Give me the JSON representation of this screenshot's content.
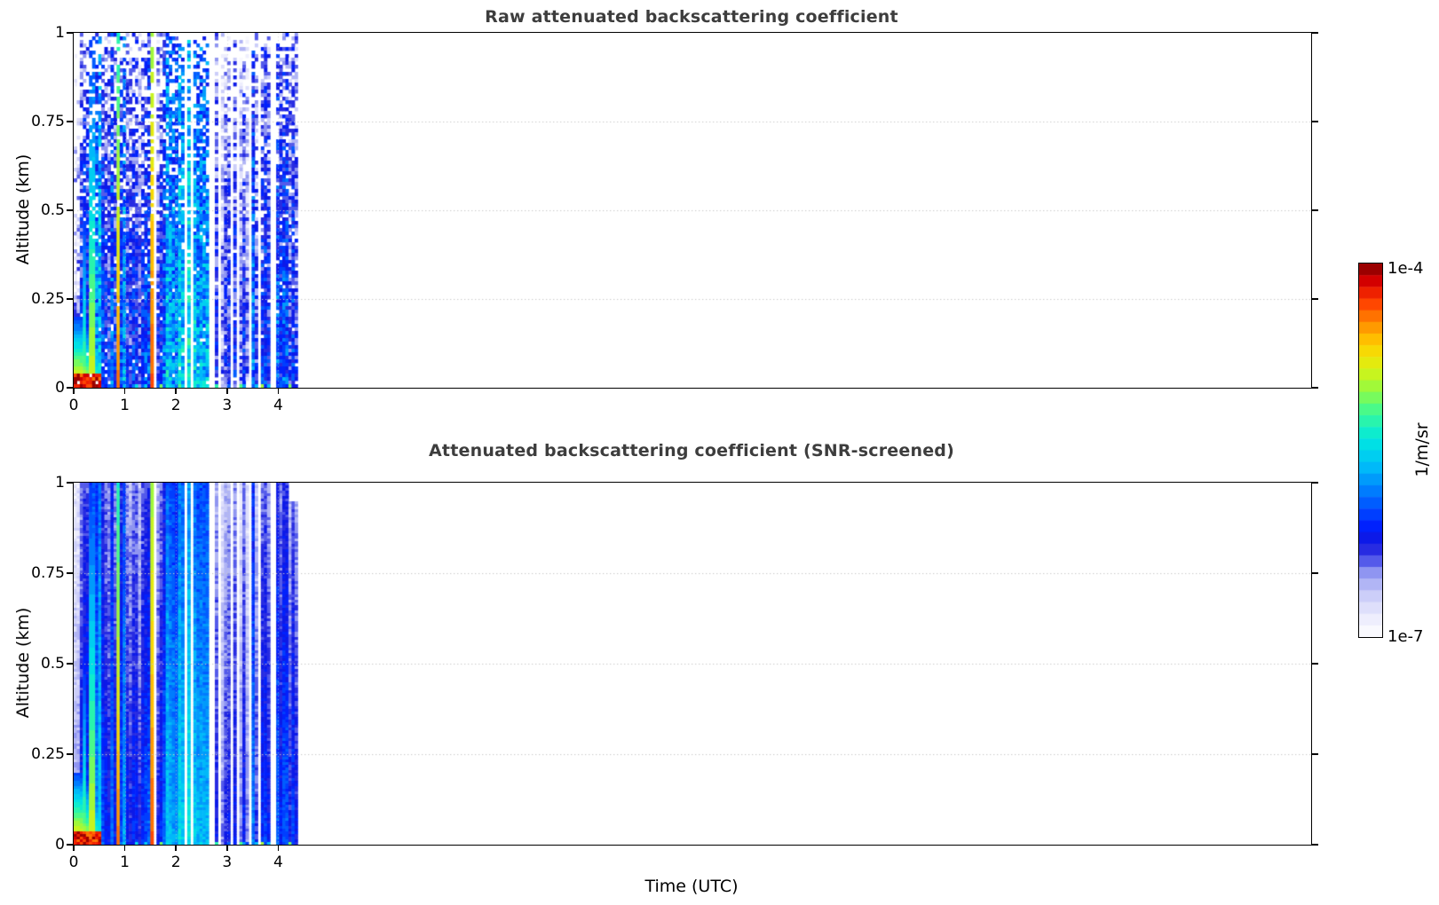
{
  "chart_data": {
    "type": "heatmap",
    "panels": [
      {
        "id": "raw",
        "title": "Raw attenuated backscattering coefficient",
        "description": "Lidar attenuated backscatter vs time and altitude; unscreened, speckled noise and dropouts increase with altitude"
      },
      {
        "id": "screened",
        "title": "Attenuated backscattering coefficient (SNR-screened)",
        "description": "Same field after SNR screening; solid smooth profile columns, small notch at top of last profiles"
      }
    ],
    "x_axis": {
      "label": "Time (UTC)",
      "tick_labels": [
        "0",
        "1",
        "2",
        "3",
        "4"
      ],
      "tick_values": [
        0,
        1,
        2,
        3,
        4
      ],
      "lim": [
        0,
        24.2
      ],
      "data_extent": [
        0,
        4.33
      ],
      "grid": "dotted"
    },
    "y_axis": {
      "label": "Altitude (km)",
      "tick_labels": [
        "0",
        "0.25",
        "0.5",
        "0.75",
        "1"
      ],
      "tick_values": [
        0,
        0.25,
        0.5,
        0.75,
        1
      ],
      "lim": [
        0,
        1
      ],
      "grid": "dotted"
    },
    "colorbar": {
      "label": "1/m/sr",
      "max_label": "1e-4",
      "min_label": "1e-7",
      "scale": "log10",
      "vmin": 1e-07,
      "vmax": 0.0001,
      "levels": 32,
      "stops": [
        [
          0.0,
          "#ffffff"
        ],
        [
          0.06,
          "#e9e9fc"
        ],
        [
          0.12,
          "#c6c8f8"
        ],
        [
          0.17,
          "#9399f1"
        ],
        [
          0.21,
          "#474de9"
        ],
        [
          0.25,
          "#1215dd"
        ],
        [
          0.3,
          "#0022ff"
        ],
        [
          0.38,
          "#0072ff"
        ],
        [
          0.46,
          "#00c0f8"
        ],
        [
          0.53,
          "#00e8e0"
        ],
        [
          0.6,
          "#3cfa96"
        ],
        [
          0.66,
          "#93fb42"
        ],
        [
          0.72,
          "#dcf112"
        ],
        [
          0.78,
          "#ffd200"
        ],
        [
          0.84,
          "#ff8c00"
        ],
        [
          0.9,
          "#ff3a00"
        ],
        [
          0.95,
          "#d90000"
        ],
        [
          1.0,
          "#7f0000"
        ]
      ]
    },
    "texture": {
      "seed": 11,
      "dt": 0.06,
      "t_end": 4.33,
      "vertical_lapse": 0.35,
      "regimes": [
        {
          "t0": 0.0,
          "t1": 0.08,
          "L": -6.5,
          "spread": 0.3,
          "gap_p": 0.05,
          "sparse": true
        },
        {
          "t0": 0.08,
          "t1": 0.2,
          "L": -6.1,
          "spread": 0.3,
          "gap_p": 0.06
        },
        {
          "t0": 0.2,
          "t1": 1.0,
          "L": -5.85,
          "spread": 0.35,
          "gap_p": 0.07
        },
        {
          "t0": 1.0,
          "t1": 1.32,
          "L": -6.3,
          "spread": 0.25,
          "gap_p": 0.08
        },
        {
          "t0": 1.32,
          "t1": 1.78,
          "L": -6.0,
          "spread": 0.3,
          "gap_p": 0.26
        },
        {
          "t0": 1.78,
          "t1": 2.7,
          "L": -5.55,
          "spread": 0.22,
          "gap_p": 0.17
        },
        {
          "t0": 2.7,
          "t1": 3.38,
          "L": -6.3,
          "spread": 0.18,
          "gap_p": 0.14
        },
        {
          "t0": 3.38,
          "t1": 4.33,
          "L": -6.05,
          "spread": 0.28,
          "gap_p": 0.22
        }
      ],
      "plumes": [
        {
          "t": 0.02,
          "w": 0.015,
          "L": -4.5,
          "slope": 3.5
        },
        {
          "t": 0.17,
          "w": 0.045,
          "L": -4.9,
          "slope": 2.2
        },
        {
          "t": 0.33,
          "w": 0.055,
          "L": -4.15,
          "slope": 1.25
        },
        {
          "t": 0.85,
          "w": 0.038,
          "L": -4.25,
          "slope": 0.9
        },
        {
          "t": 1.5,
          "w": 0.045,
          "L": -4.35,
          "slope": 0.65
        }
      ],
      "surface_layer": {
        "t_max": 0.5,
        "L0": -4.55,
        "lapse": 7.5
      },
      "smear": {
        "t_max": 0.5,
        "z_max": 0.04,
        "L": -4.2
      },
      "bottom_row": {
        "t_min": 1.2,
        "L": -5.6,
        "spread": 0.6,
        "p": 0.5
      },
      "panel_params": [
        {
          "rows": 100,
          "noise": 0.3,
          "speckle": true,
          "seed": 101
        },
        {
          "rows": 136,
          "noise": 0.11,
          "speckle": false,
          "seed": 202,
          "notch_t": 4.2,
          "notch_z": 0.95
        }
      ]
    }
  },
  "style": {
    "title_color": "#3d3d3d",
    "axis_color": "#000000",
    "grid_color": "#c7c7c7",
    "background": "#ffffff"
  }
}
